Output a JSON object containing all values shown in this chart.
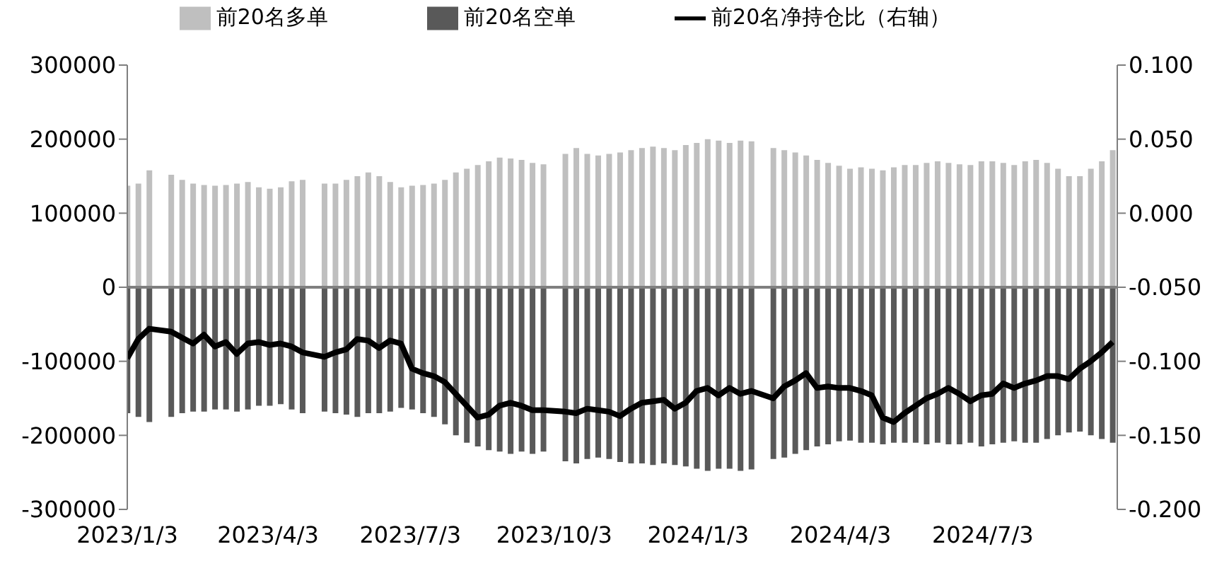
{
  "chart_data": {
    "type": "bar",
    "x": [
      "2023-01-03",
      "2023-01-10",
      "2023-01-17",
      "2023-01-31",
      "2023-02-07",
      "2023-02-14",
      "2023-02-21",
      "2023-02-28",
      "2023-03-07",
      "2023-03-14",
      "2023-03-21",
      "2023-03-28",
      "2023-04-04",
      "2023-04-11",
      "2023-04-18",
      "2023-04-25",
      "2023-05-09",
      "2023-05-16",
      "2023-05-23",
      "2023-05-30",
      "2023-06-06",
      "2023-06-13",
      "2023-06-20",
      "2023-06-27",
      "2023-07-04",
      "2023-07-11",
      "2023-07-18",
      "2023-07-25",
      "2023-08-01",
      "2023-08-08",
      "2023-08-15",
      "2023-08-22",
      "2023-08-29",
      "2023-09-05",
      "2023-09-12",
      "2023-09-19",
      "2023-09-26",
      "2023-10-10",
      "2023-10-17",
      "2023-10-24",
      "2023-10-31",
      "2023-11-07",
      "2023-11-14",
      "2023-11-21",
      "2023-11-28",
      "2023-12-05",
      "2023-12-12",
      "2023-12-19",
      "2023-12-26",
      "2024-01-02",
      "2024-01-09",
      "2024-01-16",
      "2024-01-23",
      "2024-01-30",
      "2024-02-06",
      "2024-02-20",
      "2024-02-27",
      "2024-03-05",
      "2024-03-12",
      "2024-03-19",
      "2024-03-26",
      "2024-04-02",
      "2024-04-09",
      "2024-04-16",
      "2024-04-23",
      "2024-04-30",
      "2024-05-07",
      "2024-05-14",
      "2024-05-21",
      "2024-05-28",
      "2024-06-04",
      "2024-06-11",
      "2024-06-18",
      "2024-06-25",
      "2024-07-02",
      "2024-07-09",
      "2024-07-16",
      "2024-07-23",
      "2024-07-30",
      "2024-08-06",
      "2024-08-13",
      "2024-08-20",
      "2024-08-27",
      "2024-09-03",
      "2024-09-10",
      "2024-09-17",
      "2024-09-24"
    ],
    "series": [
      {
        "name": "前20名多单",
        "color": "#bfbfbf",
        "values": [
          137000,
          140000,
          158000,
          152000,
          145000,
          140000,
          138000,
          137000,
          138000,
          140000,
          142000,
          135000,
          133000,
          135000,
          143000,
          145000,
          140000,
          140000,
          145000,
          150000,
          155000,
          150000,
          142000,
          135000,
          137000,
          138000,
          140000,
          145000,
          155000,
          160000,
          165000,
          170000,
          175000,
          174000,
          172000,
          168000,
          166000,
          180000,
          188000,
          180000,
          178000,
          180000,
          182000,
          185000,
          188000,
          190000,
          188000,
          185000,
          192000,
          195000,
          200000,
          198000,
          195000,
          198000,
          197000,
          188000,
          185000,
          182000,
          178000,
          172000,
          168000,
          164000,
          160000,
          162000,
          160000,
          158000,
          162000,
          165000,
          165000,
          168000,
          170000,
          168000,
          166000,
          165000,
          170000,
          170000,
          168000,
          165000,
          170000,
          172000,
          168000,
          160000,
          150000,
          150000,
          160000,
          170000,
          185000
        ]
      },
      {
        "name": "前20名空单",
        "color": "#595959",
        "values": [
          -170000,
          -175000,
          -182000,
          -175000,
          -170000,
          -168000,
          -168000,
          -165000,
          -165000,
          -168000,
          -165000,
          -160000,
          -160000,
          -158000,
          -165000,
          -170000,
          -168000,
          -170000,
          -172000,
          -175000,
          -170000,
          -170000,
          -168000,
          -163000,
          -165000,
          -170000,
          -175000,
          -185000,
          -200000,
          -210000,
          -215000,
          -220000,
          -222000,
          -225000,
          -222000,
          -225000,
          -222000,
          -235000,
          -238000,
          -232000,
          -230000,
          -232000,
          -236000,
          -238000,
          -238000,
          -240000,
          -238000,
          -240000,
          -242000,
          -245000,
          -248000,
          -245000,
          -245000,
          -248000,
          -246000,
          -232000,
          -230000,
          -225000,
          -220000,
          -215000,
          -212000,
          -208000,
          -207000,
          -210000,
          -210000,
          -212000,
          -210000,
          -210000,
          -210000,
          -212000,
          -210000,
          -212000,
          -212000,
          -210000,
          -215000,
          -212000,
          -210000,
          -208000,
          -210000,
          -210000,
          -205000,
          -200000,
          -196000,
          -195000,
          -200000,
          -205000,
          -210000
        ]
      },
      {
        "name": "前20名净持仓比（右轴）",
        "type": "line",
        "axis": "y2",
        "color": "#000000",
        "values": [
          -0.098,
          -0.085,
          -0.078,
          -0.08,
          -0.084,
          -0.088,
          -0.082,
          -0.09,
          -0.087,
          -0.095,
          -0.088,
          -0.087,
          -0.089,
          -0.088,
          -0.09,
          -0.094,
          -0.097,
          -0.094,
          -0.092,
          -0.085,
          -0.086,
          -0.091,
          -0.086,
          -0.088,
          -0.105,
          -0.108,
          -0.11,
          -0.114,
          -0.122,
          -0.13,
          -0.138,
          -0.136,
          -0.13,
          -0.128,
          -0.13,
          -0.133,
          -0.133,
          -0.134,
          -0.135,
          -0.132,
          -0.133,
          -0.134,
          -0.137,
          -0.132,
          -0.128,
          -0.127,
          -0.126,
          -0.132,
          -0.128,
          -0.12,
          -0.118,
          -0.123,
          -0.118,
          -0.122,
          -0.12,
          -0.125,
          -0.117,
          -0.113,
          -0.108,
          -0.118,
          -0.117,
          -0.118,
          -0.118,
          -0.12,
          -0.123,
          -0.138,
          -0.141,
          -0.135,
          -0.13,
          -0.125,
          -0.122,
          -0.118,
          -0.122,
          -0.127,
          -0.123,
          -0.122,
          -0.115,
          -0.118,
          -0.115,
          -0.113,
          -0.11,
          -0.11,
          -0.112,
          -0.105,
          -0.1,
          -0.094,
          -0.087
        ]
      }
    ],
    "xlim": [
      "2023-01-03",
      "2024-09-27"
    ],
    "xticks": [
      {
        "value": "2023-01-03",
        "label": "2023/1/3"
      },
      {
        "value": "2023-04-03",
        "label": "2023/4/3"
      },
      {
        "value": "2023-07-03",
        "label": "2023/7/3"
      },
      {
        "value": "2023-10-03",
        "label": "2023/10/3"
      },
      {
        "value": "2024-01-03",
        "label": "2024/1/3"
      },
      {
        "value": "2024-04-03",
        "label": "2024/4/3"
      },
      {
        "value": "2024-07-03",
        "label": "2024/7/3"
      }
    ],
    "ylim": [
      -300000,
      300000
    ],
    "yticks": [
      -300000,
      -200000,
      -100000,
      0,
      100000,
      200000,
      300000
    ],
    "y2lim": [
      -0.2,
      0.1
    ],
    "y2ticks": [
      {
        "value": -0.2,
        "label": "-0.200"
      },
      {
        "value": -0.15,
        "label": "-0.150"
      },
      {
        "value": -0.1,
        "label": "-0.100"
      },
      {
        "value": -0.05,
        "label": "-0.050"
      },
      {
        "value": 0,
        "label": "0.000"
      },
      {
        "value": 0.05,
        "label": "0.050"
      },
      {
        "value": 0.1,
        "label": "0.100"
      }
    ],
    "ref_lines": [
      {
        "axis": "y",
        "value": 0,
        "color": "#7f7f7f"
      }
    ],
    "stacked": true,
    "grid": false,
    "legend": "top",
    "marker": "none",
    "line_style": "solid"
  }
}
